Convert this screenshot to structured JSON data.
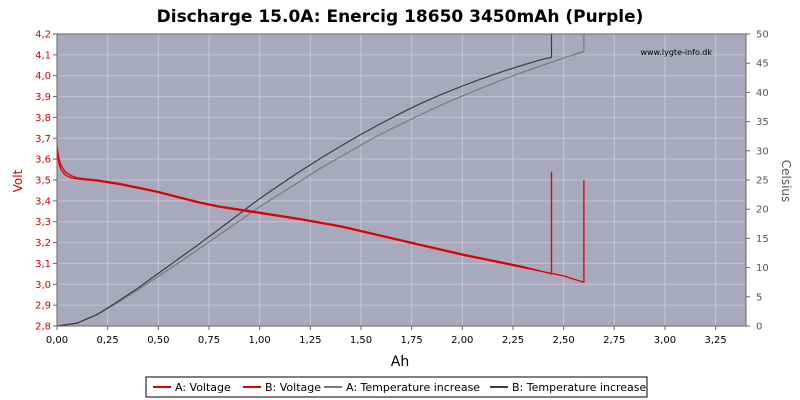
{
  "chart_data": {
    "type": "line",
    "title": "Discharge 15.0A: Enercig 18650 3450mAh (Purple)",
    "watermark": "www.lygte-info.dk",
    "xlabel": "Ah",
    "ylabel_left": "Volt",
    "ylabel_right": "Celsius",
    "xlim": [
      0,
      3.4
    ],
    "ylim_left": [
      2.8,
      4.2
    ],
    "ylim_right": [
      0,
      50
    ],
    "x_ticks": [
      "0,00",
      "0,25",
      "0,50",
      "0,75",
      "1,00",
      "1,25",
      "1,50",
      "1,75",
      "2,00",
      "2,25",
      "2,50",
      "2,75",
      "3,00",
      "3,25"
    ],
    "y_left_ticks": [
      "2,8",
      "2,9",
      "3,0",
      "3,1",
      "3,2",
      "3,3",
      "3,4",
      "3,5",
      "3,6",
      "3,7",
      "3,8",
      "3,9",
      "4,0",
      "4,1",
      "4,2"
    ],
    "y_right_ticks": [
      "0",
      "5",
      "10",
      "15",
      "20",
      "25",
      "30",
      "35",
      "40",
      "45",
      "50"
    ],
    "grid": true,
    "legend_position": "bottom",
    "colors": {
      "plot_bg": "#a9a9bd",
      "grid": "#c4c4d2",
      "voltage": "#dd0000",
      "temp_a": "#7a7a7a",
      "temp_b": "#3c3c3c"
    },
    "series": [
      {
        "name": "A: Voltage",
        "axis": "left",
        "color": "#dd0000",
        "x": [
          0,
          0.01,
          0.02,
          0.04,
          0.07,
          0.1,
          0.15,
          0.2,
          0.3,
          0.4,
          0.5,
          0.6,
          0.7,
          0.8,
          0.9,
          1.0,
          1.2,
          1.4,
          1.6,
          1.8,
          2.0,
          2.2,
          2.4,
          2.5,
          2.55,
          2.6,
          2.6
        ],
        "y": [
          3.65,
          3.58,
          3.55,
          3.525,
          3.51,
          3.505,
          3.5,
          3.495,
          3.48,
          3.46,
          3.44,
          3.415,
          3.39,
          3.37,
          3.355,
          3.34,
          3.31,
          3.275,
          3.23,
          3.185,
          3.14,
          3.1,
          3.06,
          3.04,
          3.025,
          3.01,
          3.5
        ]
      },
      {
        "name": "B: Voltage",
        "axis": "left",
        "color": "#dd0000",
        "x": [
          0,
          0.01,
          0.02,
          0.04,
          0.07,
          0.1,
          0.15,
          0.2,
          0.3,
          0.4,
          0.5,
          0.6,
          0.7,
          0.8,
          0.9,
          1.0,
          1.2,
          1.4,
          1.6,
          1.8,
          2.0,
          2.2,
          2.3,
          2.4,
          2.44,
          2.44
        ],
        "y": [
          3.66,
          3.6,
          3.57,
          3.54,
          3.52,
          3.51,
          3.505,
          3.5,
          3.485,
          3.465,
          3.445,
          3.42,
          3.395,
          3.375,
          3.36,
          3.345,
          3.315,
          3.28,
          3.235,
          3.19,
          3.145,
          3.105,
          3.085,
          3.06,
          3.05,
          3.54
        ]
      },
      {
        "name": "A: Temperature increase",
        "axis": "right",
        "color": "#7a7a7a",
        "x": [
          0,
          0.1,
          0.2,
          0.3,
          0.4,
          0.5,
          0.6,
          0.7,
          0.8,
          0.9,
          1.0,
          1.1,
          1.2,
          1.3,
          1.4,
          1.5,
          1.6,
          1.7,
          1.8,
          1.9,
          2.0,
          2.1,
          2.2,
          2.3,
          2.4,
          2.5,
          2.6,
          2.6
        ],
        "y": [
          0,
          0.5,
          2,
          4,
          6.2,
          8.5,
          10.8,
          13.2,
          15.6,
          18,
          20.4,
          22.6,
          24.8,
          27,
          29,
          31,
          32.9,
          34.6,
          36.3,
          37.9,
          39.4,
          40.8,
          42.2,
          43.5,
          44.7,
          45.9,
          47,
          50
        ]
      },
      {
        "name": "B: Temperature increase",
        "axis": "right",
        "color": "#3c3c3c",
        "x": [
          0,
          0.1,
          0.2,
          0.3,
          0.4,
          0.5,
          0.6,
          0.7,
          0.8,
          0.9,
          1.0,
          1.1,
          1.2,
          1.3,
          1.4,
          1.5,
          1.6,
          1.7,
          1.8,
          1.9,
          2.0,
          2.1,
          2.2,
          2.3,
          2.4,
          2.44,
          2.44
        ],
        "y": [
          0,
          0.5,
          2,
          4.2,
          6.5,
          9,
          11.5,
          14,
          16.6,
          19.2,
          21.8,
          24.2,
          26.5,
          28.7,
          30.8,
          32.8,
          34.7,
          36.5,
          38.2,
          39.7,
          41.1,
          42.4,
          43.6,
          44.7,
          45.7,
          46,
          50
        ]
      }
    ]
  }
}
